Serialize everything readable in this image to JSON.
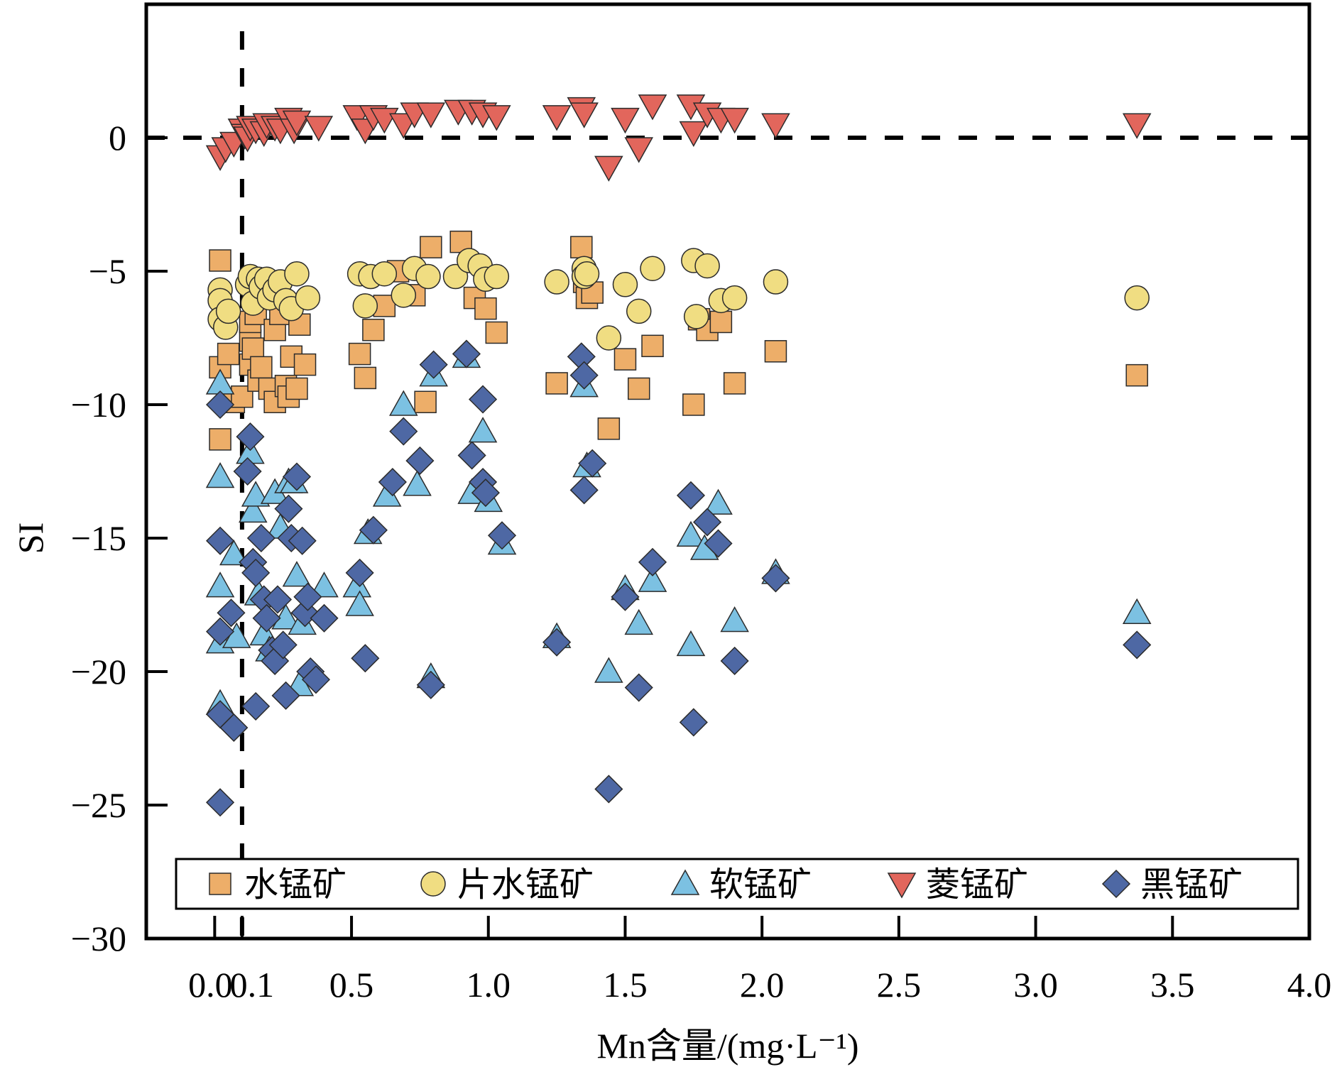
{
  "chart_data": {
    "type": "scatter",
    "title": "",
    "xlabel": "Mn含量/(mg·L⁻¹)",
    "ylabel": "SI",
    "xlim": [
      -0.25,
      4.0
    ],
    "ylim": [
      -30,
      5
    ],
    "x_ticks": [
      {
        "value": 0.0,
        "label": "0.0"
      },
      {
        "value": 0.1,
        "label": "0.1"
      },
      {
        "value": 0.5,
        "label": "0.5"
      },
      {
        "value": 1.0,
        "label": "1.0"
      },
      {
        "value": 1.5,
        "label": "1.5"
      },
      {
        "value": 2.0,
        "label": "2.0"
      },
      {
        "value": 2.5,
        "label": "2.5"
      },
      {
        "value": 3.0,
        "label": "3.0"
      },
      {
        "value": 3.5,
        "label": "3.5"
      },
      {
        "value": 4.0,
        "label": "4.0"
      }
    ],
    "y_ticks": [
      {
        "value": 0,
        "label": "0"
      },
      {
        "value": -5,
        "label": "−5"
      },
      {
        "value": -10,
        "label": "−10"
      },
      {
        "value": -15,
        "label": "−15"
      },
      {
        "value": -20,
        "label": "−20"
      },
      {
        "value": -25,
        "label": "−25"
      },
      {
        "value": -30,
        "label": "−30"
      }
    ],
    "reference_lines": [
      {
        "orientation": "horizontal",
        "value": 0,
        "style": "dashed"
      },
      {
        "orientation": "vertical",
        "value": 0.1,
        "style": "dashed"
      }
    ],
    "grid": false,
    "legend_position": "bottom",
    "series": [
      {
        "name": "水锰矿",
        "marker": "square",
        "color": "#EDAE69",
        "points": [
          [
            0.02,
            -4.6
          ],
          [
            0.02,
            -8.6
          ],
          [
            0.02,
            -11.3
          ],
          [
            0.05,
            -8.1
          ],
          [
            0.07,
            -9.9
          ],
          [
            0.1,
            -9.7
          ],
          [
            0.13,
            -8.5
          ],
          [
            0.13,
            -7.6
          ],
          [
            0.13,
            -6.9
          ],
          [
            0.14,
            -7.9
          ],
          [
            0.15,
            -6.6
          ],
          [
            0.16,
            -9.1
          ],
          [
            0.17,
            -8.6
          ],
          [
            0.2,
            -9.4
          ],
          [
            0.22,
            -9.9
          ],
          [
            0.22,
            -7.2
          ],
          [
            0.24,
            -6.6
          ],
          [
            0.26,
            -9.3
          ],
          [
            0.27,
            -9.7
          ],
          [
            0.28,
            -8.2
          ],
          [
            0.3,
            -9.4
          ],
          [
            0.31,
            -7.0
          ],
          [
            0.33,
            -8.5
          ],
          [
            0.53,
            -8.1
          ],
          [
            0.55,
            -9.0
          ],
          [
            0.58,
            -7.2
          ],
          [
            0.62,
            -6.3
          ],
          [
            0.67,
            -5.0
          ],
          [
            0.73,
            -5.9
          ],
          [
            0.79,
            -4.1
          ],
          [
            0.77,
            -9.9
          ],
          [
            0.9,
            -3.9
          ],
          [
            0.95,
            -6.0
          ],
          [
            0.99,
            -6.4
          ],
          [
            1.03,
            -7.3
          ],
          [
            1.25,
            -9.2
          ],
          [
            1.34,
            -4.1
          ],
          [
            1.35,
            -5.4
          ],
          [
            1.36,
            -6.0
          ],
          [
            1.38,
            -5.8
          ],
          [
            1.44,
            -10.9
          ],
          [
            1.5,
            -8.3
          ],
          [
            1.55,
            -9.4
          ],
          [
            1.6,
            -7.8
          ],
          [
            1.75,
            -10.0
          ],
          [
            1.77,
            -6.8
          ],
          [
            1.8,
            -7.2
          ],
          [
            1.85,
            -6.9
          ],
          [
            1.9,
            -9.2
          ],
          [
            2.05,
            -8.0
          ],
          [
            3.37,
            -8.9
          ]
        ]
      },
      {
        "name": "片水锰矿",
        "marker": "circle",
        "color": "#F0DD82",
        "points": [
          [
            0.02,
            -5.7
          ],
          [
            0.02,
            -6.1
          ],
          [
            0.02,
            -6.8
          ],
          [
            0.04,
            -7.1
          ],
          [
            0.05,
            -6.5
          ],
          [
            0.12,
            -5.5
          ],
          [
            0.13,
            -5.2
          ],
          [
            0.14,
            -6.2
          ],
          [
            0.16,
            -5.3
          ],
          [
            0.17,
            -5.6
          ],
          [
            0.19,
            -5.3
          ],
          [
            0.2,
            -6.0
          ],
          [
            0.22,
            -5.7
          ],
          [
            0.24,
            -5.4
          ],
          [
            0.26,
            -6.1
          ],
          [
            0.28,
            -6.4
          ],
          [
            0.3,
            -5.1
          ],
          [
            0.34,
            -6.0
          ],
          [
            0.53,
            -5.1
          ],
          [
            0.55,
            -6.3
          ],
          [
            0.57,
            -5.2
          ],
          [
            0.62,
            -5.1
          ],
          [
            0.69,
            -5.9
          ],
          [
            0.73,
            -4.9
          ],
          [
            0.78,
            -5.2
          ],
          [
            0.88,
            -5.2
          ],
          [
            0.93,
            -4.6
          ],
          [
            0.97,
            -4.8
          ],
          [
            0.99,
            -5.3
          ],
          [
            1.03,
            -5.2
          ],
          [
            1.25,
            -5.4
          ],
          [
            1.35,
            -4.9
          ],
          [
            1.35,
            -5.2
          ],
          [
            1.36,
            -5.1
          ],
          [
            1.44,
            -7.5
          ],
          [
            1.5,
            -5.5
          ],
          [
            1.55,
            -6.5
          ],
          [
            1.6,
            -4.9
          ],
          [
            1.75,
            -4.6
          ],
          [
            1.8,
            -4.8
          ],
          [
            1.76,
            -6.7
          ],
          [
            1.85,
            -6.1
          ],
          [
            1.9,
            -6.0
          ],
          [
            2.05,
            -5.4
          ],
          [
            3.37,
            -6.0
          ]
        ]
      },
      {
        "name": "软锰矿",
        "marker": "triangle-up",
        "color": "#7CC1E2",
        "points": [
          [
            0.02,
            -9.2
          ],
          [
            0.02,
            -12.7
          ],
          [
            0.02,
            -16.8
          ],
          [
            0.02,
            -18.9
          ],
          [
            0.02,
            -21.2
          ],
          [
            0.07,
            -15.6
          ],
          [
            0.08,
            -18.7
          ],
          [
            0.13,
            -11.8
          ],
          [
            0.14,
            -14.0
          ],
          [
            0.15,
            -13.4
          ],
          [
            0.16,
            -17.1
          ],
          [
            0.18,
            -18.6
          ],
          [
            0.2,
            -19.2
          ],
          [
            0.22,
            -13.3
          ],
          [
            0.24,
            -14.6
          ],
          [
            0.26,
            -18.0
          ],
          [
            0.27,
            -12.9
          ],
          [
            0.29,
            -12.9
          ],
          [
            0.3,
            -16.4
          ],
          [
            0.31,
            -20.5
          ],
          [
            0.32,
            -18.2
          ],
          [
            0.4,
            -16.8
          ],
          [
            0.52,
            -16.8
          ],
          [
            0.53,
            -17.5
          ],
          [
            0.56,
            -14.8
          ],
          [
            0.63,
            -13.4
          ],
          [
            0.69,
            -10.0
          ],
          [
            0.74,
            -13.0
          ],
          [
            0.79,
            -20.2
          ],
          [
            0.8,
            -8.9
          ],
          [
            0.92,
            -8.2
          ],
          [
            0.94,
            -13.3
          ],
          [
            0.98,
            -11.0
          ],
          [
            1.0,
            -13.6
          ],
          [
            1.05,
            -15.2
          ],
          [
            1.25,
            -18.7
          ],
          [
            1.35,
            -9.3
          ],
          [
            1.36,
            -12.3
          ],
          [
            1.44,
            -20.0
          ],
          [
            1.5,
            -16.9
          ],
          [
            1.55,
            -18.2
          ],
          [
            1.6,
            -16.6
          ],
          [
            1.74,
            -19.0
          ],
          [
            1.74,
            -14.9
          ],
          [
            1.79,
            -15.4
          ],
          [
            1.84,
            -13.7
          ],
          [
            1.9,
            -18.1
          ],
          [
            2.05,
            -16.3
          ],
          [
            3.37,
            -17.8
          ]
        ]
      },
      {
        "name": "菱锰矿",
        "marker": "triangle-down",
        "color": "#E2665C",
        "points": [
          [
            0.02,
            -0.7
          ],
          [
            0.04,
            -0.4
          ],
          [
            0.07,
            -0.2
          ],
          [
            0.1,
            0.3
          ],
          [
            0.11,
            0.1
          ],
          [
            0.12,
            0.0
          ],
          [
            0.13,
            0.4
          ],
          [
            0.15,
            0.3
          ],
          [
            0.18,
            0.2
          ],
          [
            0.19,
            0.5
          ],
          [
            0.22,
            0.4
          ],
          [
            0.24,
            0.3
          ],
          [
            0.27,
            0.7
          ],
          [
            0.29,
            0.3
          ],
          [
            0.3,
            0.6
          ],
          [
            0.38,
            0.4
          ],
          [
            0.52,
            0.8
          ],
          [
            0.55,
            0.3
          ],
          [
            0.58,
            0.8
          ],
          [
            0.62,
            0.7
          ],
          [
            0.69,
            0.5
          ],
          [
            0.73,
            0.9
          ],
          [
            0.79,
            0.9
          ],
          [
            0.89,
            1.0
          ],
          [
            0.94,
            1.0
          ],
          [
            0.98,
            0.9
          ],
          [
            1.03,
            0.8
          ],
          [
            1.25,
            0.8
          ],
          [
            1.34,
            1.1
          ],
          [
            1.35,
            0.9
          ],
          [
            1.44,
            -1.1
          ],
          [
            1.5,
            0.7
          ],
          [
            1.55,
            -0.4
          ],
          [
            1.6,
            1.2
          ],
          [
            1.74,
            1.2
          ],
          [
            1.75,
            0.2
          ],
          [
            1.8,
            0.9
          ],
          [
            1.85,
            0.7
          ],
          [
            1.9,
            0.7
          ],
          [
            2.05,
            0.5
          ],
          [
            3.37,
            0.5
          ]
        ]
      },
      {
        "name": "黑锰矿",
        "marker": "diamond",
        "color": "#4E68A4",
        "points": [
          [
            0.02,
            -10.0
          ],
          [
            0.02,
            -15.1
          ],
          [
            0.02,
            -18.5
          ],
          [
            0.02,
            -21.6
          ],
          [
            0.02,
            -24.9
          ],
          [
            0.06,
            -17.8
          ],
          [
            0.07,
            -22.1
          ],
          [
            0.12,
            -12.5
          ],
          [
            0.13,
            -11.2
          ],
          [
            0.14,
            -15.9
          ],
          [
            0.15,
            -16.3
          ],
          [
            0.15,
            -21.3
          ],
          [
            0.17,
            -15.0
          ],
          [
            0.18,
            -17.3
          ],
          [
            0.19,
            -18.0
          ],
          [
            0.21,
            -19.2
          ],
          [
            0.22,
            -19.6
          ],
          [
            0.23,
            -17.3
          ],
          [
            0.25,
            -19.0
          ],
          [
            0.26,
            -20.9
          ],
          [
            0.27,
            -13.9
          ],
          [
            0.28,
            -15.0
          ],
          [
            0.3,
            -12.7
          ],
          [
            0.32,
            -15.1
          ],
          [
            0.33,
            -17.8
          ],
          [
            0.34,
            -17.2
          ],
          [
            0.35,
            -20.0
          ],
          [
            0.37,
            -20.3
          ],
          [
            0.4,
            -18.0
          ],
          [
            0.53,
            -16.3
          ],
          [
            0.55,
            -19.5
          ],
          [
            0.58,
            -14.7
          ],
          [
            0.65,
            -12.9
          ],
          [
            0.69,
            -11.0
          ],
          [
            0.75,
            -12.1
          ],
          [
            0.79,
            -20.5
          ],
          [
            0.8,
            -8.5
          ],
          [
            0.92,
            -8.1
          ],
          [
            0.94,
            -11.9
          ],
          [
            0.98,
            -9.8
          ],
          [
            0.98,
            -12.9
          ],
          [
            0.99,
            -13.3
          ],
          [
            1.05,
            -14.9
          ],
          [
            1.25,
            -18.9
          ],
          [
            1.34,
            -8.2
          ],
          [
            1.35,
            -8.9
          ],
          [
            1.35,
            -13.2
          ],
          [
            1.38,
            -12.2
          ],
          [
            1.44,
            -24.4
          ],
          [
            1.5,
            -17.2
          ],
          [
            1.55,
            -20.6
          ],
          [
            1.6,
            -15.9
          ],
          [
            1.74,
            -13.4
          ],
          [
            1.75,
            -21.9
          ],
          [
            1.8,
            -14.4
          ],
          [
            1.84,
            -15.2
          ],
          [
            1.9,
            -19.6
          ],
          [
            2.05,
            -16.5
          ],
          [
            3.37,
            -19.0
          ]
        ]
      }
    ]
  }
}
